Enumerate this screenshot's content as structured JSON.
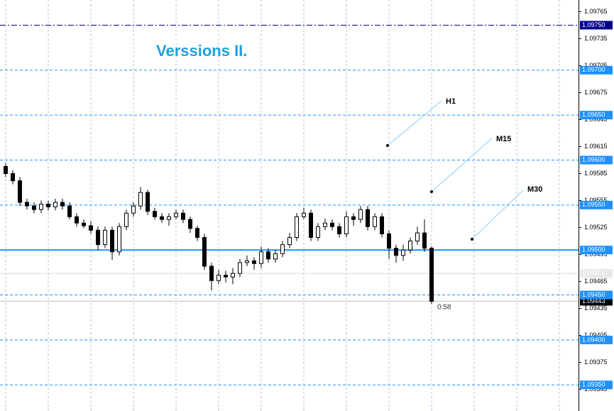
{
  "chart_data": {
    "type": "candlestick",
    "title": "Verssions II.",
    "ylim": [
      1.09321,
      1.09778
    ],
    "yticks": [
      1.09765,
      1.09735,
      1.09705,
      1.09675,
      1.09645,
      1.09615,
      1.09585,
      1.09555,
      1.09525,
      1.09495,
      1.09465,
      1.09435,
      1.09405,
      1.09375,
      1.09345
    ],
    "levels": [
      {
        "value": 1.0975,
        "label": "1.09750",
        "style": "dashdot",
        "color": "#00008b"
      },
      {
        "value": 1.097,
        "label": "1.09700",
        "style": "dashed",
        "color": "#1e90ff"
      },
      {
        "value": 1.0965,
        "label": "1.09650",
        "style": "dashed",
        "color": "#1e90ff"
      },
      {
        "value": 1.096,
        "label": "1.09600",
        "style": "dashed",
        "color": "#1e90ff"
      },
      {
        "value": 1.0955,
        "label": "1.09550",
        "style": "dashed",
        "color": "#1e90ff"
      },
      {
        "value": 1.095,
        "label": "1.09500",
        "style": "solid",
        "color": "#1e90ff"
      },
      {
        "value": 1.0945,
        "label": "1.09450",
        "style": "dashed",
        "color": "#1e90ff"
      },
      {
        "value": 1.094,
        "label": "1.09400",
        "style": "dashed",
        "color": "#1e90ff"
      },
      {
        "value": 1.0935,
        "label": "1.09350",
        "style": "dashed",
        "color": "#1e90ff"
      }
    ],
    "ask_line": {
      "value": 1.09474,
      "label": "1.09474"
    },
    "bid_line": {
      "value": 1.09443,
      "label": "1.09443"
    },
    "timer": "0:58",
    "timeframes": [
      "H1",
      "M15",
      "M30"
    ],
    "candles": [
      [
        1.09593,
        1.09597,
        1.09581,
        1.09585
      ],
      [
        1.09585,
        1.09589,
        1.09573,
        1.09577
      ],
      [
        1.09577,
        1.09581,
        1.09549,
        1.09553
      ],
      [
        1.09553,
        1.09557,
        1.09545,
        1.09549
      ],
      [
        1.09549,
        1.09553,
        1.09541,
        1.09545
      ],
      [
        1.09545,
        1.09555,
        1.09541,
        1.09551
      ],
      [
        1.09551,
        1.09555,
        1.09544,
        1.09548
      ],
      [
        1.09548,
        1.09557,
        1.09544,
        1.09553
      ],
      [
        1.09553,
        1.09557,
        1.09545,
        1.09549
      ],
      [
        1.09549,
        1.09553,
        1.09534,
        1.09537
      ],
      [
        1.09537,
        1.09541,
        1.09526,
        1.0953
      ],
      [
        1.0953,
        1.09534,
        1.09524,
        1.09527
      ],
      [
        1.09527,
        1.09532,
        1.09518,
        1.09522
      ],
      [
        1.09522,
        1.09526,
        1.095,
        1.09506
      ],
      [
        1.09506,
        1.09526,
        1.09502,
        1.09522
      ],
      [
        1.09522,
        1.09526,
        1.09489,
        1.09498
      ],
      [
        1.09498,
        1.0953,
        1.09494,
        1.09526
      ],
      [
        1.09526,
        1.09545,
        1.09522,
        1.09541
      ],
      [
        1.09541,
        1.09553,
        1.09537,
        1.09549
      ],
      [
        1.09549,
        1.0957,
        1.09545,
        1.09564
      ],
      [
        1.09564,
        1.09567,
        1.09539,
        1.09543
      ],
      [
        1.09543,
        1.09547,
        1.09534,
        1.09537
      ],
      [
        1.09537,
        1.09541,
        1.0953,
        1.09534
      ],
      [
        1.09534,
        1.09541,
        1.09527,
        1.09537
      ],
      [
        1.09537,
        1.09545,
        1.09534,
        1.09541
      ],
      [
        1.09541,
        1.09545,
        1.0953,
        1.09534
      ],
      [
        1.09534,
        1.09537,
        1.09519,
        1.09524
      ],
      [
        1.09524,
        1.09527,
        1.0951,
        1.09514
      ],
      [
        1.09514,
        1.09518,
        1.09478,
        1.09482
      ],
      [
        1.09482,
        1.09486,
        1.09455,
        1.09466
      ],
      [
        1.09466,
        1.09478,
        1.09462,
        1.09472
      ],
      [
        1.09472,
        1.09477,
        1.09464,
        1.0947
      ],
      [
        1.0947,
        1.0948,
        1.09462,
        1.09474
      ],
      [
        1.09474,
        1.0949,
        1.0947,
        1.09486
      ],
      [
        1.09486,
        1.09494,
        1.09482,
        1.09488
      ],
      [
        1.09488,
        1.09492,
        1.09478,
        1.09485
      ],
      [
        1.09485,
        1.09504,
        1.0948,
        1.09498
      ],
      [
        1.09498,
        1.09502,
        1.09486,
        1.0949
      ],
      [
        1.0949,
        1.095,
        1.09486,
        1.09496
      ],
      [
        1.09496,
        1.0951,
        1.09492,
        1.09506
      ],
      [
        1.09506,
        1.09519,
        1.09502,
        1.09514
      ],
      [
        1.09514,
        1.09541,
        1.0951,
        1.09537
      ],
      [
        1.09537,
        1.09547,
        1.09534,
        1.09541
      ],
      [
        1.09541,
        1.09545,
        1.0951,
        1.09514
      ],
      [
        1.09514,
        1.0953,
        1.0951,
        1.09526
      ],
      [
        1.09526,
        1.09535,
        1.09522,
        1.0953
      ],
      [
        1.0953,
        1.09534,
        1.09522,
        1.09526
      ],
      [
        1.09526,
        1.0953,
        1.09514,
        1.09518
      ],
      [
        1.09518,
        1.09543,
        1.09514,
        1.09537
      ],
      [
        1.09537,
        1.09541,
        1.09527,
        1.09534
      ],
      [
        1.09534,
        1.09549,
        1.0953,
        1.09545
      ],
      [
        1.09545,
        1.09549,
        1.09522,
        1.09526
      ],
      [
        1.09526,
        1.09541,
        1.09522,
        1.09537
      ],
      [
        1.09537,
        1.09541,
        1.09514,
        1.09518
      ],
      [
        1.09518,
        1.09522,
        1.0949,
        1.09502
      ],
      [
        1.09502,
        1.09506,
        1.09486,
        1.09494
      ],
      [
        1.09494,
        1.09506,
        1.09488,
        1.095
      ],
      [
        1.095,
        1.09514,
        1.09496,
        1.0951
      ],
      [
        1.0951,
        1.09526,
        1.09506,
        1.09519
      ],
      [
        1.09519,
        1.09534,
        1.09498,
        1.09502
      ],
      [
        1.09502,
        1.09504,
        1.0944,
        1.09443
      ]
    ]
  }
}
